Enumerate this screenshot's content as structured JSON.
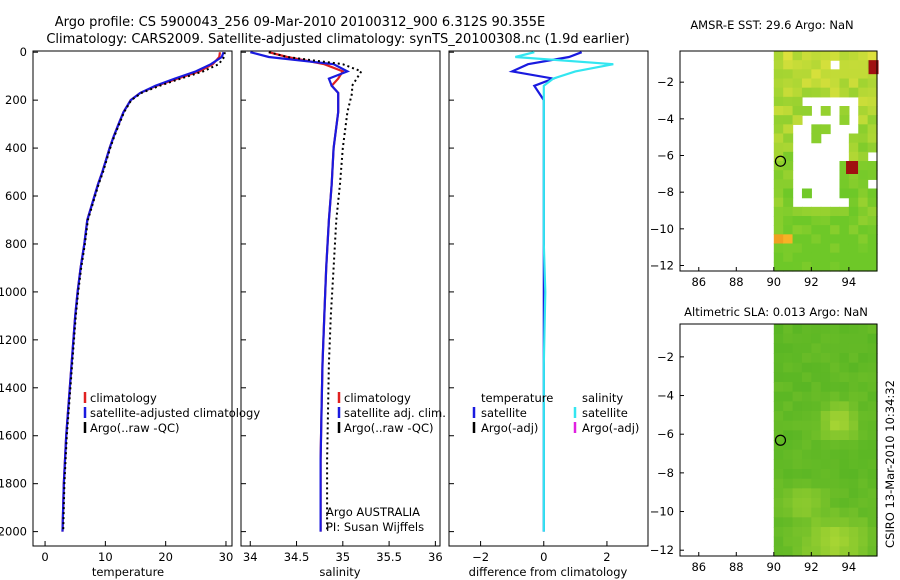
{
  "header": {
    "line1": "Argo profile: CS 5900043_256 09-Mar-2010 20100312_900 6.312S 90.355E",
    "line2": "Climatology: CARS2009. Satellite-adjusted climatology: synTS_20100308.nc (1.9d earlier)"
  },
  "colors": {
    "climatology": "#e02020",
    "satellite": "#1a1adf",
    "argo": "#000000",
    "sat_diff_salinity": "#33e6f0",
    "argo_adj_salinity": "#e020e0"
  },
  "chart_data": [
    {
      "type": "line",
      "id": "temperature",
      "xlabel": "temperature",
      "ylabel": "",
      "xlim": [
        -2,
        31
      ],
      "ylim": [
        2060,
        -5
      ],
      "xticks": [
        0,
        10,
        20,
        30
      ],
      "yticks": [
        0,
        200,
        400,
        600,
        800,
        1000,
        1200,
        1400,
        1600,
        1800,
        2000
      ],
      "legend": [
        "climatology",
        "satellite-adjusted climatology",
        "Argo(..raw -QC)"
      ],
      "series": [
        {
          "name": "climatology",
          "style": "solid",
          "x": [
            29.0,
            28.9,
            27.8,
            25.6,
            22.0,
            18.5,
            15.8,
            14.2,
            13.0,
            12.2,
            11.4,
            10.7,
            10.1,
            9.5,
            8.8,
            8.2,
            7.6,
            7.0,
            6.5,
            5.9,
            5.4,
            5.0,
            4.7,
            4.4,
            4.1,
            3.8,
            3.5,
            3.3,
            3.1,
            2.9
          ],
          "y": [
            0,
            20,
            50,
            80,
            110,
            140,
            170,
            200,
            250,
            300,
            350,
            400,
            450,
            500,
            550,
            600,
            650,
            700,
            800,
            900,
            1000,
            1100,
            1200,
            1300,
            1400,
            1500,
            1600,
            1700,
            1800,
            2000
          ]
        },
        {
          "name": "satellite-adjusted climatology",
          "style": "solid",
          "x": [
            29.6,
            29.3,
            27.5,
            25.0,
            21.5,
            18.3,
            15.8,
            14.2,
            13.0,
            12.2,
            11.4,
            10.7,
            10.1,
            9.5,
            8.8,
            8.2,
            7.6,
            7.0,
            6.5,
            5.9,
            5.4,
            5.0,
            4.7,
            4.4,
            4.1,
            3.8,
            3.5,
            3.3,
            3.1,
            2.9
          ],
          "y": [
            0,
            20,
            50,
            80,
            110,
            140,
            170,
            200,
            250,
            300,
            350,
            400,
            450,
            500,
            550,
            600,
            650,
            700,
            800,
            900,
            1000,
            1100,
            1200,
            1300,
            1400,
            1500,
            1600,
            1700,
            1800,
            2000
          ]
        },
        {
          "name": "Argo(..raw -QC)",
          "style": "dotted",
          "x": [
            29.8,
            29.7,
            28.8,
            26.2,
            22.5,
            19.0,
            16.0,
            14.3,
            13.1,
            12.3,
            11.5,
            10.8,
            10.2,
            9.6,
            8.9,
            8.3,
            7.7,
            7.1,
            6.6,
            6.0,
            5.5,
            5.1,
            4.8,
            4.5,
            4.2,
            3.9,
            3.6,
            3.4,
            3.2,
            3.0
          ],
          "y": [
            0,
            20,
            50,
            80,
            110,
            140,
            170,
            200,
            250,
            300,
            350,
            400,
            450,
            500,
            550,
            600,
            650,
            700,
            800,
            900,
            1000,
            1100,
            1200,
            1300,
            1400,
            1500,
            1600,
            1700,
            1800,
            2000
          ]
        }
      ]
    },
    {
      "type": "line",
      "id": "salinity",
      "xlabel": "salinity",
      "ylabel": "",
      "xlim": [
        33.9,
        36.05
      ],
      "ylim": [
        2060,
        -5
      ],
      "xticks": [
        34,
        34.5,
        35,
        35.5,
        36
      ],
      "xticklabels": [
        "34",
        "34.5",
        "35",
        "35.5",
        "36"
      ],
      "legend": [
        "climatology",
        "satellite adj. clim.",
        "Argo(..raw -QC)"
      ],
      "annotations": [
        "Argo AUSTRALIA",
        "PI: Susan Wijffels"
      ],
      "series": [
        {
          "name": "climatology",
          "style": "solid",
          "x": [
            34.2,
            34.4,
            34.8,
            35.0,
            34.95,
            34.88,
            34.95,
            34.95,
            34.9,
            34.88,
            34.85,
            34.82,
            34.8,
            34.78,
            34.77,
            34.76,
            34.76
          ],
          "y": [
            0,
            20,
            50,
            80,
            110,
            140,
            170,
            250,
            400,
            550,
            700,
            900,
            1100,
            1300,
            1500,
            1700,
            2000
          ]
        },
        {
          "name": "satellite adj. clim.",
          "style": "solid",
          "x": [
            34.0,
            34.2,
            34.9,
            35.05,
            34.85,
            34.88,
            34.95,
            34.95,
            34.9,
            34.88,
            34.85,
            34.82,
            34.8,
            34.78,
            34.77,
            34.76,
            34.76
          ],
          "y": [
            0,
            20,
            50,
            80,
            110,
            140,
            170,
            250,
            400,
            550,
            700,
            900,
            1100,
            1300,
            1500,
            1700,
            2000
          ]
        },
        {
          "name": "Argo(..raw -QC)",
          "style": "dotted",
          "x": [
            34.2,
            34.4,
            35.0,
            35.2,
            35.15,
            35.1,
            35.1,
            35.05,
            35.0,
            34.97,
            34.93,
            34.9,
            34.87,
            34.85,
            34.84,
            34.83,
            34.83
          ],
          "y": [
            0,
            20,
            50,
            80,
            110,
            140,
            170,
            250,
            400,
            550,
            700,
            900,
            1100,
            1300,
            1500,
            1700,
            2000
          ]
        }
      ]
    },
    {
      "type": "line",
      "id": "difference",
      "xlabel": "difference from climatology",
      "ylabel": "",
      "xlim": [
        -3,
        3.3
      ],
      "ylim": [
        2060,
        -5
      ],
      "xticks": [
        -2,
        0,
        2
      ],
      "xticklabels": [
        "−2",
        "0",
        "2"
      ],
      "legend_temperature_title": "temperature",
      "legend_salinity_title": "salinity",
      "legend": [
        "satellite",
        "Argo(-adj)",
        "satellite",
        "Argo(-adj)"
      ],
      "series": [
        {
          "name": "satellite",
          "group": "temperature",
          "style": "solid",
          "x": [
            1.2,
            0.8,
            -0.5,
            -1.0,
            0.3,
            -0.3,
            0.0,
            0.0,
            0.0,
            0.0,
            0.0,
            0.0,
            0.0,
            0.0
          ],
          "y": [
            0,
            20,
            50,
            80,
            110,
            140,
            200,
            400,
            600,
            800,
            1000,
            1300,
            1600,
            2000
          ]
        },
        {
          "name": "satellite",
          "group": "salinity",
          "style": "solid",
          "x": [
            -0.3,
            -0.9,
            2.2,
            1.0,
            0.3,
            0.0,
            0.0,
            0.0,
            0.0,
            0.0,
            0.05,
            0.0,
            0.0,
            0.0
          ],
          "y": [
            0,
            20,
            50,
            80,
            110,
            140,
            200,
            400,
            600,
            800,
            1000,
            1300,
            1600,
            2000
          ]
        }
      ]
    },
    {
      "type": "heatmap",
      "id": "sst_map",
      "title": "AMSR-E SST: 29.6 Argo: NaN",
      "xlim": [
        85,
        95.5
      ],
      "ylim": [
        -12.3,
        -0.3
      ],
      "xticks": [
        86,
        88,
        90,
        92,
        94
      ],
      "yticks": [
        -2,
        -4,
        -6,
        -8,
        -10,
        -12
      ],
      "yticklabels": [
        "−2",
        "−4",
        "−6",
        "−8",
        "−10",
        "−12"
      ],
      "marker": {
        "lon": 90.355,
        "lat": -6.312
      }
    },
    {
      "type": "heatmap",
      "id": "sla_map",
      "title": "Altimetric SLA: 0.013 Argo: NaN",
      "xlim": [
        85,
        95.5
      ],
      "ylim": [
        -12.3,
        -0.3
      ],
      "xticks": [
        86,
        88,
        90,
        92,
        94
      ],
      "yticks": [
        -2,
        -4,
        -6,
        -8,
        -10,
        -12
      ],
      "yticklabels": [
        "−2",
        "−4",
        "−6",
        "−8",
        "−10",
        "−12"
      ],
      "marker": {
        "lon": 90.355,
        "lat": -6.312
      }
    }
  ],
  "footer": {
    "credit": "CSIRO 13-Mar-2010 10:34:32"
  }
}
